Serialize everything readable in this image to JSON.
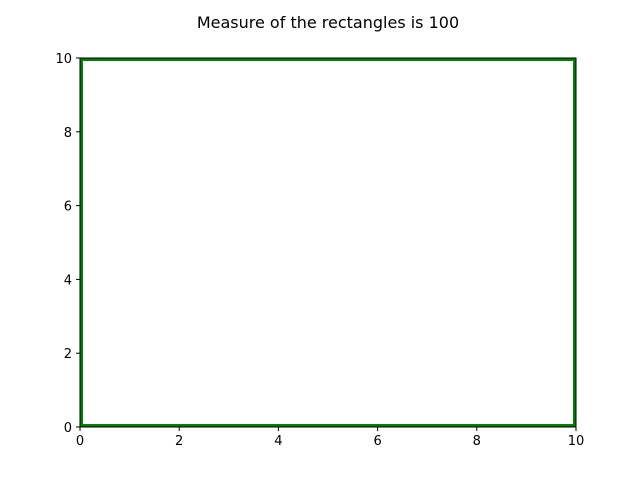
{
  "chart_data": {
    "type": "rectangle",
    "title": "Measure of the rectangles is 100",
    "xlabel": "",
    "ylabel": "",
    "xlim": [
      0,
      10
    ],
    "ylim": [
      0,
      10
    ],
    "x_ticks": [
      "0",
      "2",
      "4",
      "6",
      "8",
      "10"
    ],
    "y_ticks": [
      "0",
      "2",
      "4",
      "6",
      "8",
      "10"
    ],
    "x_tick_values": [
      0,
      2,
      4,
      6,
      8,
      10
    ],
    "y_tick_values": [
      0,
      2,
      4,
      6,
      8,
      10
    ],
    "grid": false,
    "rectangles": [
      {
        "x": 0,
        "y": 0,
        "width": 10,
        "height": 10,
        "edge_color": "#008000",
        "fill": "none"
      }
    ]
  }
}
